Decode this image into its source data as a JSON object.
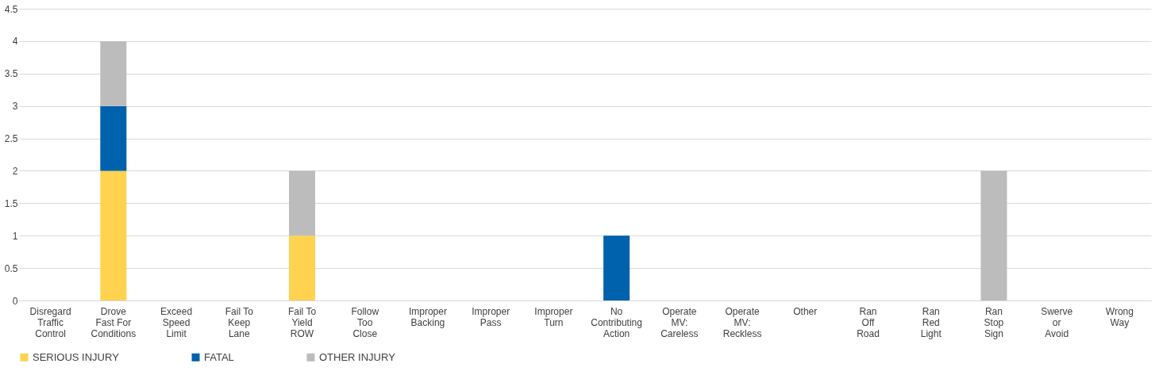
{
  "chart_data": {
    "type": "bar",
    "stacked": true,
    "categories": [
      "Disregard\nTraffic\nControl",
      "Drove\nFast For\nConditions",
      "Exceed\nSpeed\nLimit",
      "Fail To\nKeep\nLane",
      "Fail To\nYield\nROW",
      "Follow\nToo\nClose",
      "Improper\nBacking",
      "Improper\nPass",
      "Improper\nTurn",
      "No\nContributing\nAction",
      "Operate\nMV:\nCareless",
      "Operate\nMV:\nReckless",
      "Other",
      "Ran\nOff\nRoad",
      "Ran\nRed\nLight",
      "Ran\nStop\nSign",
      "Swerve\nor\nAvoid",
      "Wrong\nWay"
    ],
    "series": [
      {
        "name": "SERIOUS INJURY",
        "color": "#ffd24f",
        "values": [
          0,
          2,
          0,
          0,
          1,
          0,
          0,
          0,
          0,
          0,
          0,
          0,
          0,
          0,
          0,
          0,
          0,
          0
        ]
      },
      {
        "name": "FATAL",
        "color": "#0061ac",
        "values": [
          0,
          1,
          0,
          0,
          0,
          0,
          0,
          0,
          0,
          1,
          0,
          0,
          0,
          0,
          0,
          0,
          0,
          0
        ]
      },
      {
        "name": "OTHER INJURY",
        "color": "#bcbcbc",
        "values": [
          0,
          1,
          0,
          0,
          1,
          0,
          0,
          0,
          0,
          0,
          0,
          0,
          0,
          0,
          0,
          2,
          0,
          0
        ]
      }
    ],
    "ylim": [
      0,
      4.5
    ],
    "yticks": [
      0,
      0.5,
      1,
      1.5,
      2,
      2.5,
      3,
      3.5,
      4,
      4.5
    ],
    "grid": "y",
    "legend": "bottom"
  }
}
